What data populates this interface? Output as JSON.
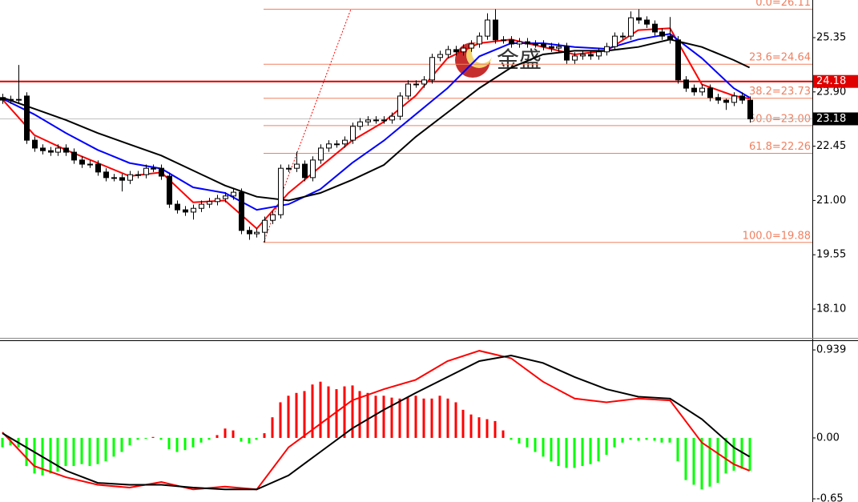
{
  "chart_data": [
    {
      "type": "candlestick",
      "open": [
        23.75,
        23.68,
        23.7,
        23.79,
        22.61,
        22.4,
        22.33,
        22.29,
        22.4,
        22.29,
        22.08,
        21.97,
        21.97,
        21.76,
        21.61,
        21.61,
        21.54,
        21.69,
        21.69,
        21.86,
        21.86,
        21.65,
        20.9,
        20.75,
        20.69,
        20.79,
        20.9,
        20.97,
        21.05,
        21.12,
        21.22,
        20.2,
        20.11,
        20.15,
        20.47,
        20.62,
        21.86,
        21.86,
        21.97,
        21.61,
        22.08,
        22.4,
        22.51,
        22.51,
        22.61,
        22.98,
        23.1,
        23.15,
        23.15,
        23.15,
        23.25,
        23.79,
        24.11,
        24.11,
        24.22,
        24.82,
        24.9,
        25.03,
        24.97,
        25.07,
        25.18,
        25.39,
        25.82,
        25.29,
        25.29,
        25.18,
        25.24,
        25.18,
        25.18,
        25.11,
        25.07,
        25.11,
        24.75,
        24.86,
        24.9,
        24.86,
        24.97,
        25.11,
        25.39,
        25.39,
        25.88,
        25.82,
        25.71,
        25.5,
        25.39,
        25.29,
        24.22,
        24.0,
        23.9,
        24.0,
        23.75,
        23.68,
        23.62,
        23.79,
        23.68
      ],
      "high": [
        23.85,
        23.8,
        24.62,
        23.89,
        22.71,
        22.5,
        22.43,
        22.5,
        22.5,
        22.39,
        22.18,
        22.07,
        22.07,
        21.86,
        21.71,
        21.71,
        21.79,
        21.79,
        21.96,
        21.96,
        21.96,
        21.75,
        21.0,
        20.85,
        20.89,
        21.0,
        21.07,
        21.15,
        21.22,
        21.32,
        21.32,
        20.3,
        20.25,
        20.57,
        20.72,
        21.96,
        21.96,
        22.3,
        22.07,
        22.18,
        22.5,
        22.61,
        22.61,
        22.71,
        23.08,
        23.2,
        23.25,
        23.25,
        23.25,
        23.35,
        23.89,
        24.21,
        24.21,
        24.32,
        24.92,
        25.0,
        25.13,
        25.13,
        25.17,
        25.28,
        25.49,
        26.0,
        26.11,
        25.39,
        25.39,
        25.34,
        25.34,
        25.28,
        25.28,
        25.21,
        25.21,
        25.21,
        24.96,
        25.0,
        25.0,
        25.07,
        25.21,
        25.49,
        25.49,
        26.05,
        26.11,
        25.92,
        25.81,
        25.6,
        25.9,
        25.39,
        24.32,
        24.1,
        24.1,
        24.1,
        23.85,
        23.72,
        23.89,
        23.89,
        23.78
      ],
      "low": [
        23.58,
        23.58,
        23.58,
        22.51,
        22.3,
        22.23,
        22.19,
        22.19,
        22.19,
        21.98,
        21.87,
        21.87,
        21.66,
        21.51,
        21.51,
        21.24,
        21.44,
        21.59,
        21.59,
        21.76,
        21.55,
        20.8,
        20.65,
        20.59,
        20.49,
        20.69,
        20.8,
        20.87,
        20.95,
        21.02,
        20.1,
        19.95,
        20.01,
        19.88,
        20.37,
        20.52,
        21.76,
        21.76,
        21.51,
        21.51,
        21.98,
        22.3,
        22.41,
        22.41,
        22.51,
        22.88,
        23.0,
        23.05,
        23.05,
        23.05,
        23.15,
        23.69,
        24.01,
        24.01,
        24.12,
        24.72,
        24.8,
        24.87,
        24.87,
        24.97,
        25.08,
        25.29,
        25.19,
        25.19,
        25.08,
        25.08,
        25.08,
        25.08,
        25.01,
        24.97,
        24.97,
        24.65,
        24.65,
        24.76,
        24.76,
        24.76,
        24.87,
        25.01,
        25.29,
        25.29,
        25.72,
        25.61,
        25.4,
        25.29,
        25.19,
        24.12,
        23.9,
        23.8,
        23.8,
        23.65,
        23.58,
        23.42,
        23.52,
        23.58,
        23.08
      ],
      "close": [
        23.68,
        23.7,
        23.68,
        22.61,
        22.4,
        22.33,
        22.29,
        22.4,
        22.29,
        22.08,
        21.97,
        21.97,
        21.76,
        21.61,
        21.61,
        21.54,
        21.69,
        21.69,
        21.86,
        21.86,
        21.65,
        20.9,
        20.75,
        20.69,
        20.79,
        20.9,
        20.97,
        21.05,
        21.12,
        21.22,
        20.2,
        20.11,
        20.15,
        20.47,
        20.62,
        21.86,
        21.86,
        21.97,
        21.61,
        22.08,
        22.4,
        22.51,
        22.51,
        22.61,
        22.98,
        23.1,
        23.15,
        23.15,
        23.15,
        23.25,
        23.79,
        24.11,
        24.11,
        24.22,
        24.82,
        24.9,
        25.03,
        24.97,
        25.07,
        25.18,
        25.39,
        25.82,
        25.29,
        25.29,
        25.18,
        25.24,
        25.18,
        25.18,
        25.11,
        25.07,
        25.11,
        24.75,
        24.86,
        24.9,
        24.86,
        24.97,
        25.11,
        25.39,
        25.39,
        25.88,
        25.82,
        25.71,
        25.5,
        25.39,
        25.29,
        24.22,
        24.0,
        23.9,
        24.0,
        23.75,
        23.68,
        23.62,
        23.79,
        23.68,
        23.18
      ],
      "up_color": "#ffffff",
      "down_color": "#000000",
      "series": [
        {
          "color": "#ff0000",
          "x": [
            0,
            4,
            8,
            12,
            16,
            20,
            24,
            28,
            32,
            36,
            40,
            44,
            48,
            52,
            56,
            60,
            64,
            68,
            72,
            76,
            80,
            84,
            88,
            92,
            94
          ],
          "values": [
            23.7,
            22.75,
            22.35,
            22.0,
            21.65,
            21.75,
            20.95,
            21.0,
            20.25,
            21.2,
            21.9,
            22.6,
            23.1,
            23.8,
            24.8,
            25.2,
            25.3,
            25.1,
            24.9,
            25.0,
            25.55,
            25.6,
            24.1,
            23.8,
            23.72
          ]
        },
        {
          "color": "#0000ff",
          "x": [
            0,
            4,
            8,
            12,
            16,
            20,
            24,
            28,
            32,
            36,
            40,
            44,
            48,
            52,
            56,
            60,
            64,
            68,
            72,
            76,
            80,
            84,
            88,
            92,
            94
          ],
          "values": [
            23.72,
            23.3,
            22.8,
            22.35,
            22.0,
            21.85,
            21.35,
            21.2,
            20.75,
            20.9,
            21.3,
            22.0,
            22.6,
            23.3,
            24.0,
            24.85,
            25.2,
            25.2,
            25.1,
            25.05,
            25.3,
            25.45,
            24.8,
            24.0,
            23.75
          ]
        },
        {
          "color": "#000000",
          "x": [
            0,
            4,
            8,
            12,
            16,
            20,
            24,
            28,
            32,
            36,
            40,
            44,
            48,
            52,
            56,
            60,
            64,
            68,
            72,
            76,
            80,
            84,
            88,
            92,
            94
          ],
          "values": [
            23.75,
            23.45,
            23.15,
            22.8,
            22.5,
            22.2,
            21.8,
            21.4,
            21.1,
            21.0,
            21.2,
            21.55,
            21.95,
            22.7,
            23.35,
            24.0,
            24.55,
            24.9,
            25.0,
            25.0,
            25.1,
            25.3,
            25.1,
            24.75,
            24.55
          ]
        }
      ],
      "fib_levels": [
        {
          "value": 26.11,
          "label": "0.0=26.11"
        },
        {
          "value": 24.64,
          "label": "23.6=24.64"
        },
        {
          "value": 23.73,
          "label": "38.2=23.73"
        },
        {
          "value": 23.0,
          "label": "50.0=23.00"
        },
        {
          "value": 22.26,
          "label": "61.8=22.26"
        },
        {
          "value": 19.88,
          "label": "100.0=19.88"
        }
      ],
      "fib_color": "#f08060",
      "price_markers": [
        {
          "value": 24.18,
          "color": "#e00000"
        },
        {
          "value": 23.18,
          "color": "#000000"
        }
      ],
      "watermark": "金盛",
      "xlim": [
        -0.3,
        101.9
      ],
      "ylim": [
        17.33,
        26.355
      ],
      "yticks": [
        25.35,
        {
          "value": 23.9,
          "label": "23.90"
        },
        22.45,
        {
          "value": 21,
          "label": "21.00"
        },
        19.55,
        {
          "value": 18.1,
          "label": "18.10"
        }
      ]
    },
    {
      "type": "macd",
      "histogram": [
        -0.1,
        -0.08,
        -0.1,
        -0.3,
        -0.38,
        -0.4,
        -0.38,
        -0.36,
        -0.3,
        -0.3,
        -0.28,
        -0.3,
        -0.28,
        -0.25,
        -0.2,
        -0.15,
        -0.08,
        -0.02,
        -0.01,
        0.01,
        -0.02,
        -0.12,
        -0.15,
        -0.13,
        -0.1,
        -0.05,
        -0.02,
        0.03,
        0.1,
        0.08,
        -0.04,
        -0.06,
        -0.02,
        0.05,
        0.22,
        0.38,
        0.45,
        0.48,
        0.5,
        0.57,
        0.6,
        0.55,
        0.52,
        0.55,
        0.56,
        0.5,
        0.48,
        0.45,
        0.45,
        0.43,
        0.42,
        0.43,
        0.45,
        0.42,
        0.42,
        0.45,
        0.42,
        0.38,
        0.3,
        0.25,
        0.22,
        0.2,
        0.18,
        0.08,
        -0.02,
        -0.06,
        -0.1,
        -0.15,
        -0.2,
        -0.25,
        -0.3,
        -0.32,
        -0.32,
        -0.3,
        -0.28,
        -0.25,
        -0.18,
        -0.1,
        -0.05,
        -0.02,
        -0.03,
        -0.02,
        -0.03,
        -0.05,
        -0.05,
        -0.25,
        -0.45,
        -0.5,
        -0.55,
        -0.52,
        -0.48,
        -0.38,
        -0.35,
        -0.33,
        -0.35
      ],
      "pos_color": "#ff0000",
      "neg_color": "#00ff00",
      "series": [
        {
          "color": "#ff0000",
          "x": [
            0,
            4,
            8,
            12,
            16,
            20,
            24,
            28,
            32,
            36,
            40,
            44,
            48,
            52,
            56,
            60,
            64,
            68,
            72,
            76,
            80,
            84,
            88,
            92,
            94
          ],
          "values": [
            0.06,
            -0.3,
            -0.42,
            -0.5,
            -0.53,
            -0.47,
            -0.55,
            -0.52,
            -0.55,
            -0.1,
            0.15,
            0.4,
            0.52,
            0.62,
            0.82,
            0.93,
            0.85,
            0.6,
            0.42,
            0.38,
            0.42,
            0.4,
            -0.05,
            -0.28,
            -0.35
          ]
        },
        {
          "color": "#000000",
          "x": [
            0,
            4,
            8,
            12,
            16,
            20,
            24,
            28,
            32,
            36,
            40,
            44,
            48,
            52,
            56,
            60,
            64,
            68,
            72,
            76,
            80,
            84,
            88,
            92,
            94
          ],
          "values": [
            0.05,
            -0.15,
            -0.35,
            -0.48,
            -0.5,
            -0.5,
            -0.53,
            -0.55,
            -0.55,
            -0.4,
            -0.15,
            0.1,
            0.3,
            0.48,
            0.65,
            0.82,
            0.88,
            0.8,
            0.65,
            0.52,
            0.44,
            0.42,
            0.2,
            -0.1,
            -0.2
          ]
        }
      ],
      "xlim": [
        -0.3,
        101.9
      ],
      "ylim": [
        -0.684,
        1.042
      ],
      "yticks": [
        0.939,
        {
          "value": 0,
          "label": "0.00"
        },
        {
          "value": -0.65,
          "label": "-0.65"
        }
      ]
    }
  ]
}
